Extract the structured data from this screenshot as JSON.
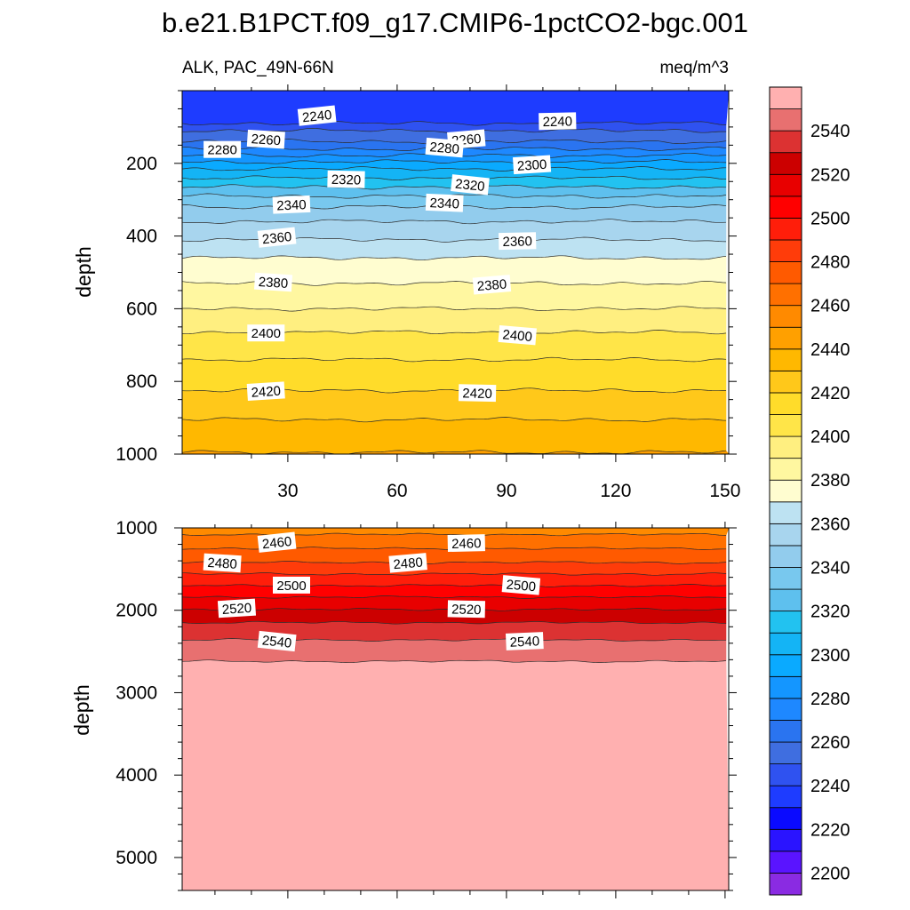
{
  "chart_data": {
    "type": "contour",
    "title": "b.e21.B1PCT.f09_g17.CMIP6-1pctCO2-bgc.001",
    "variable_label": "ALK, PAC_49N-66N",
    "units_label": "meq/m^3",
    "ylabel": "depth",
    "x_range": [
      1,
      151
    ],
    "x_ticks": [
      30,
      60,
      90,
      120,
      150
    ],
    "colorbar": {
      "levels": [
        2200,
        2210,
        2220,
        2230,
        2240,
        2250,
        2260,
        2270,
        2280,
        2290,
        2300,
        2310,
        2320,
        2330,
        2340,
        2350,
        2360,
        2370,
        2380,
        2390,
        2400,
        2410,
        2420,
        2430,
        2440,
        2450,
        2460,
        2470,
        2480,
        2490,
        2500,
        2510,
        2520,
        2530,
        2540,
        2550
      ],
      "labels": [
        "2200",
        "2220",
        "2240",
        "2260",
        "2280",
        "2300",
        "2320",
        "2340",
        "2360",
        "2380",
        "2400",
        "2420",
        "2440",
        "2460",
        "2480",
        "2500",
        "2520",
        "2540"
      ],
      "colors": [
        "#8a2be2",
        "#5a14ff",
        "#2a14ff",
        "#0a0aff",
        "#1e3cff",
        "#2f52f0",
        "#3f6ee0",
        "#2a74f0",
        "#1e88ff",
        "#1496ff",
        "#0aaaff",
        "#14b4f5",
        "#22c2f0",
        "#5ec0ee",
        "#78c8ee",
        "#92cced",
        "#a8d5ee",
        "#bde2f2",
        "#fffdd0",
        "#fff7a0",
        "#ffef80",
        "#ffe548",
        "#ffdc2a",
        "#ffc81a",
        "#ffb800",
        "#ffa000",
        "#ff8a00",
        "#ff7000",
        "#ff5a00",
        "#ff3c0a",
        "#ff1e0a",
        "#ff0000",
        "#e80000",
        "#cc0000",
        "#dc3232",
        "#e87070",
        "#ffb0b0"
      ]
    },
    "panels": [
      {
        "name": "upper",
        "y_range": [
          0,
          1000
        ],
        "y_ticks": [
          200,
          400,
          600,
          800,
          1000
        ],
        "x_tick_labels_shown": true,
        "contours": [
          {
            "value": 2240,
            "depth": 90
          },
          {
            "value": 2250,
            "depth": 110
          },
          {
            "value": 2260,
            "depth": 140
          },
          {
            "value": 2270,
            "depth": 160
          },
          {
            "value": 2280,
            "depth": 178
          },
          {
            "value": 2290,
            "depth": 196
          },
          {
            "value": 2300,
            "depth": 215
          },
          {
            "value": 2310,
            "depth": 240
          },
          {
            "value": 2320,
            "depth": 265
          },
          {
            "value": 2330,
            "depth": 290
          },
          {
            "value": 2340,
            "depth": 320
          },
          {
            "value": 2350,
            "depth": 360
          },
          {
            "value": 2360,
            "depth": 410
          },
          {
            "value": 2370,
            "depth": 460
          },
          {
            "value": 2380,
            "depth": 530
          },
          {
            "value": 2390,
            "depth": 600
          },
          {
            "value": 2400,
            "depth": 665
          },
          {
            "value": 2410,
            "depth": 740
          },
          {
            "value": 2420,
            "depth": 825
          },
          {
            "value": 2430,
            "depth": 905
          },
          {
            "value": 2440,
            "depth": 995
          }
        ],
        "contour_labels": [
          {
            "text": "2240",
            "x": 38,
            "depth": 70
          },
          {
            "text": "2240",
            "x": 104,
            "depth": 85
          },
          {
            "text": "2260",
            "x": 24,
            "depth": 135
          },
          {
            "text": "2260",
            "x": 79,
            "depth": 135
          },
          {
            "text": "2280",
            "x": 12,
            "depth": 163
          },
          {
            "text": "2280",
            "x": 73,
            "depth": 158
          },
          {
            "text": "2300",
            "x": 97,
            "depth": 205
          },
          {
            "text": "2320",
            "x": 46,
            "depth": 245
          },
          {
            "text": "2320",
            "x": 80,
            "depth": 260
          },
          {
            "text": "2340",
            "x": 31,
            "depth": 315
          },
          {
            "text": "2340",
            "x": 73,
            "depth": 310
          },
          {
            "text": "2360",
            "x": 27,
            "depth": 405
          },
          {
            "text": "2360",
            "x": 93,
            "depth": 415
          },
          {
            "text": "2380",
            "x": 26,
            "depth": 528
          },
          {
            "text": "2380",
            "x": 86,
            "depth": 535
          },
          {
            "text": "2400",
            "x": 24,
            "depth": 668
          },
          {
            "text": "2400",
            "x": 93,
            "depth": 674
          },
          {
            "text": "2420",
            "x": 24,
            "depth": 828
          },
          {
            "text": "2420",
            "x": 82,
            "depth": 833
          }
        ]
      },
      {
        "name": "lower",
        "y_range": [
          1000,
          5400
        ],
        "y_ticks": [
          1000,
          2000,
          3000,
          4000,
          5000
        ],
        "x_tick_labels_shown": false,
        "contours": [
          {
            "value": 2460,
            "depth": 1080
          },
          {
            "value": 2470,
            "depth": 1250
          },
          {
            "value": 2480,
            "depth": 1420
          },
          {
            "value": 2490,
            "depth": 1560
          },
          {
            "value": 2500,
            "depth": 1700
          },
          {
            "value": 2510,
            "depth": 1840
          },
          {
            "value": 2520,
            "depth": 1990
          },
          {
            "value": 2530,
            "depth": 2150
          },
          {
            "value": 2540,
            "depth": 2360
          },
          {
            "value": 2550,
            "depth": 2620
          }
        ],
        "contour_labels": [
          {
            "text": "2460",
            "x": 27,
            "depth": 1180
          },
          {
            "text": "2460",
            "x": 79,
            "depth": 1190
          },
          {
            "text": "2480",
            "x": 12,
            "depth": 1430
          },
          {
            "text": "2480",
            "x": 63,
            "depth": 1430
          },
          {
            "text": "2500",
            "x": 31,
            "depth": 1700
          },
          {
            "text": "2500",
            "x": 94,
            "depth": 1700
          },
          {
            "text": "2520",
            "x": 16,
            "depth": 1980
          },
          {
            "text": "2520",
            "x": 79,
            "depth": 1990
          },
          {
            "text": "2540",
            "x": 27,
            "depth": 2380
          },
          {
            "text": "2540",
            "x": 95,
            "depth": 2380
          }
        ]
      }
    ]
  }
}
